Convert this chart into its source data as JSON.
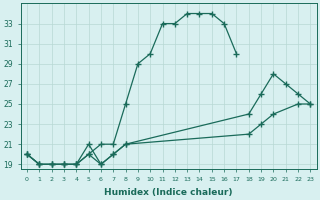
{
  "xlabel": "Humidex (Indice chaleur)",
  "bg_color": "#d8f0f0",
  "grid_color": "#b8d8d4",
  "line_color": "#1a6b5a",
  "xlim": [
    -0.5,
    23.5
  ],
  "ylim": [
    18.5,
    35.0
  ],
  "yticks": [
    19,
    21,
    23,
    25,
    27,
    29,
    31,
    33
  ],
  "xticks": [
    0,
    1,
    2,
    3,
    4,
    5,
    6,
    7,
    8,
    9,
    10,
    11,
    12,
    13,
    14,
    15,
    16,
    17,
    18,
    19,
    20,
    21,
    22,
    23
  ],
  "line1_x": [
    0,
    1,
    2,
    3,
    4,
    5,
    6,
    7,
    8,
    9,
    10,
    11,
    12,
    13,
    14,
    15,
    16,
    17
  ],
  "line1_y": [
    20,
    19,
    19,
    19,
    19,
    20,
    21,
    21,
    25,
    29,
    30,
    33,
    33,
    34,
    34,
    34,
    33,
    30
  ],
  "line2_x": [
    0,
    1,
    2,
    3,
    4,
    5,
    6,
    7,
    8,
    18,
    19,
    20,
    21,
    22,
    23
  ],
  "line2_y": [
    20,
    19,
    19,
    19,
    19,
    21,
    19,
    20,
    21,
    24,
    26,
    28,
    27,
    26,
    25
  ],
  "line3_x": [
    0,
    1,
    2,
    3,
    4,
    5,
    6,
    7,
    8,
    18,
    19,
    20,
    22,
    23
  ],
  "line3_y": [
    20,
    19,
    19,
    19,
    19,
    20,
    19,
    20,
    21,
    22,
    23,
    24,
    25,
    25
  ]
}
